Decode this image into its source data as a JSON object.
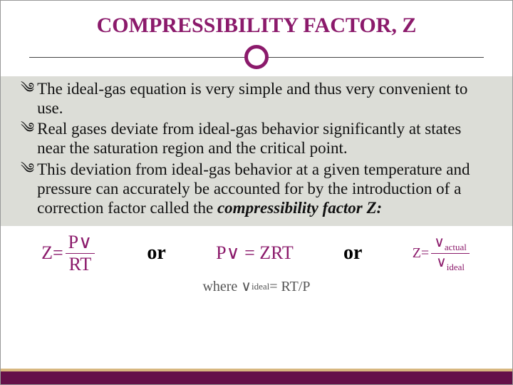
{
  "title": "COMPRESSIBILITY FACTOR, Z",
  "accent_color": "#8b1a6b",
  "content_bg": "#dcddd7",
  "footer_bar_color": "#651049",
  "footer_accent_color": "#d7b77f",
  "bullet_glyph": "༄",
  "bullets": [
    {
      "text": "The ideal-gas equation is very simple and thus very convenient to use."
    },
    {
      "text": "Real gases deviate from ideal-gas behavior significantly at states near the saturation region and the critical point."
    },
    {
      "text_pre": "This deviation from ideal-gas behavior at a given temperature and pressure can accurately be accounted for by the introduction of a correction factor called the ",
      "text_emph": "compressibility factor Z:"
    }
  ],
  "or_label": "or",
  "equations": {
    "eq1": {
      "lhs": "Z",
      "eq": " = ",
      "num": "P∨",
      "den": "RT"
    },
    "eq2": {
      "text": "P∨ = ZRT"
    },
    "eq3": {
      "lhs": "Z",
      "eq": " = ",
      "num_pre": "∨",
      "num_sub": "actual",
      "den_pre": "∨",
      "den_sub": "ideal"
    },
    "where": {
      "pre": "where ∨",
      "sub": "ideal",
      "post": " = RT/P"
    }
  }
}
